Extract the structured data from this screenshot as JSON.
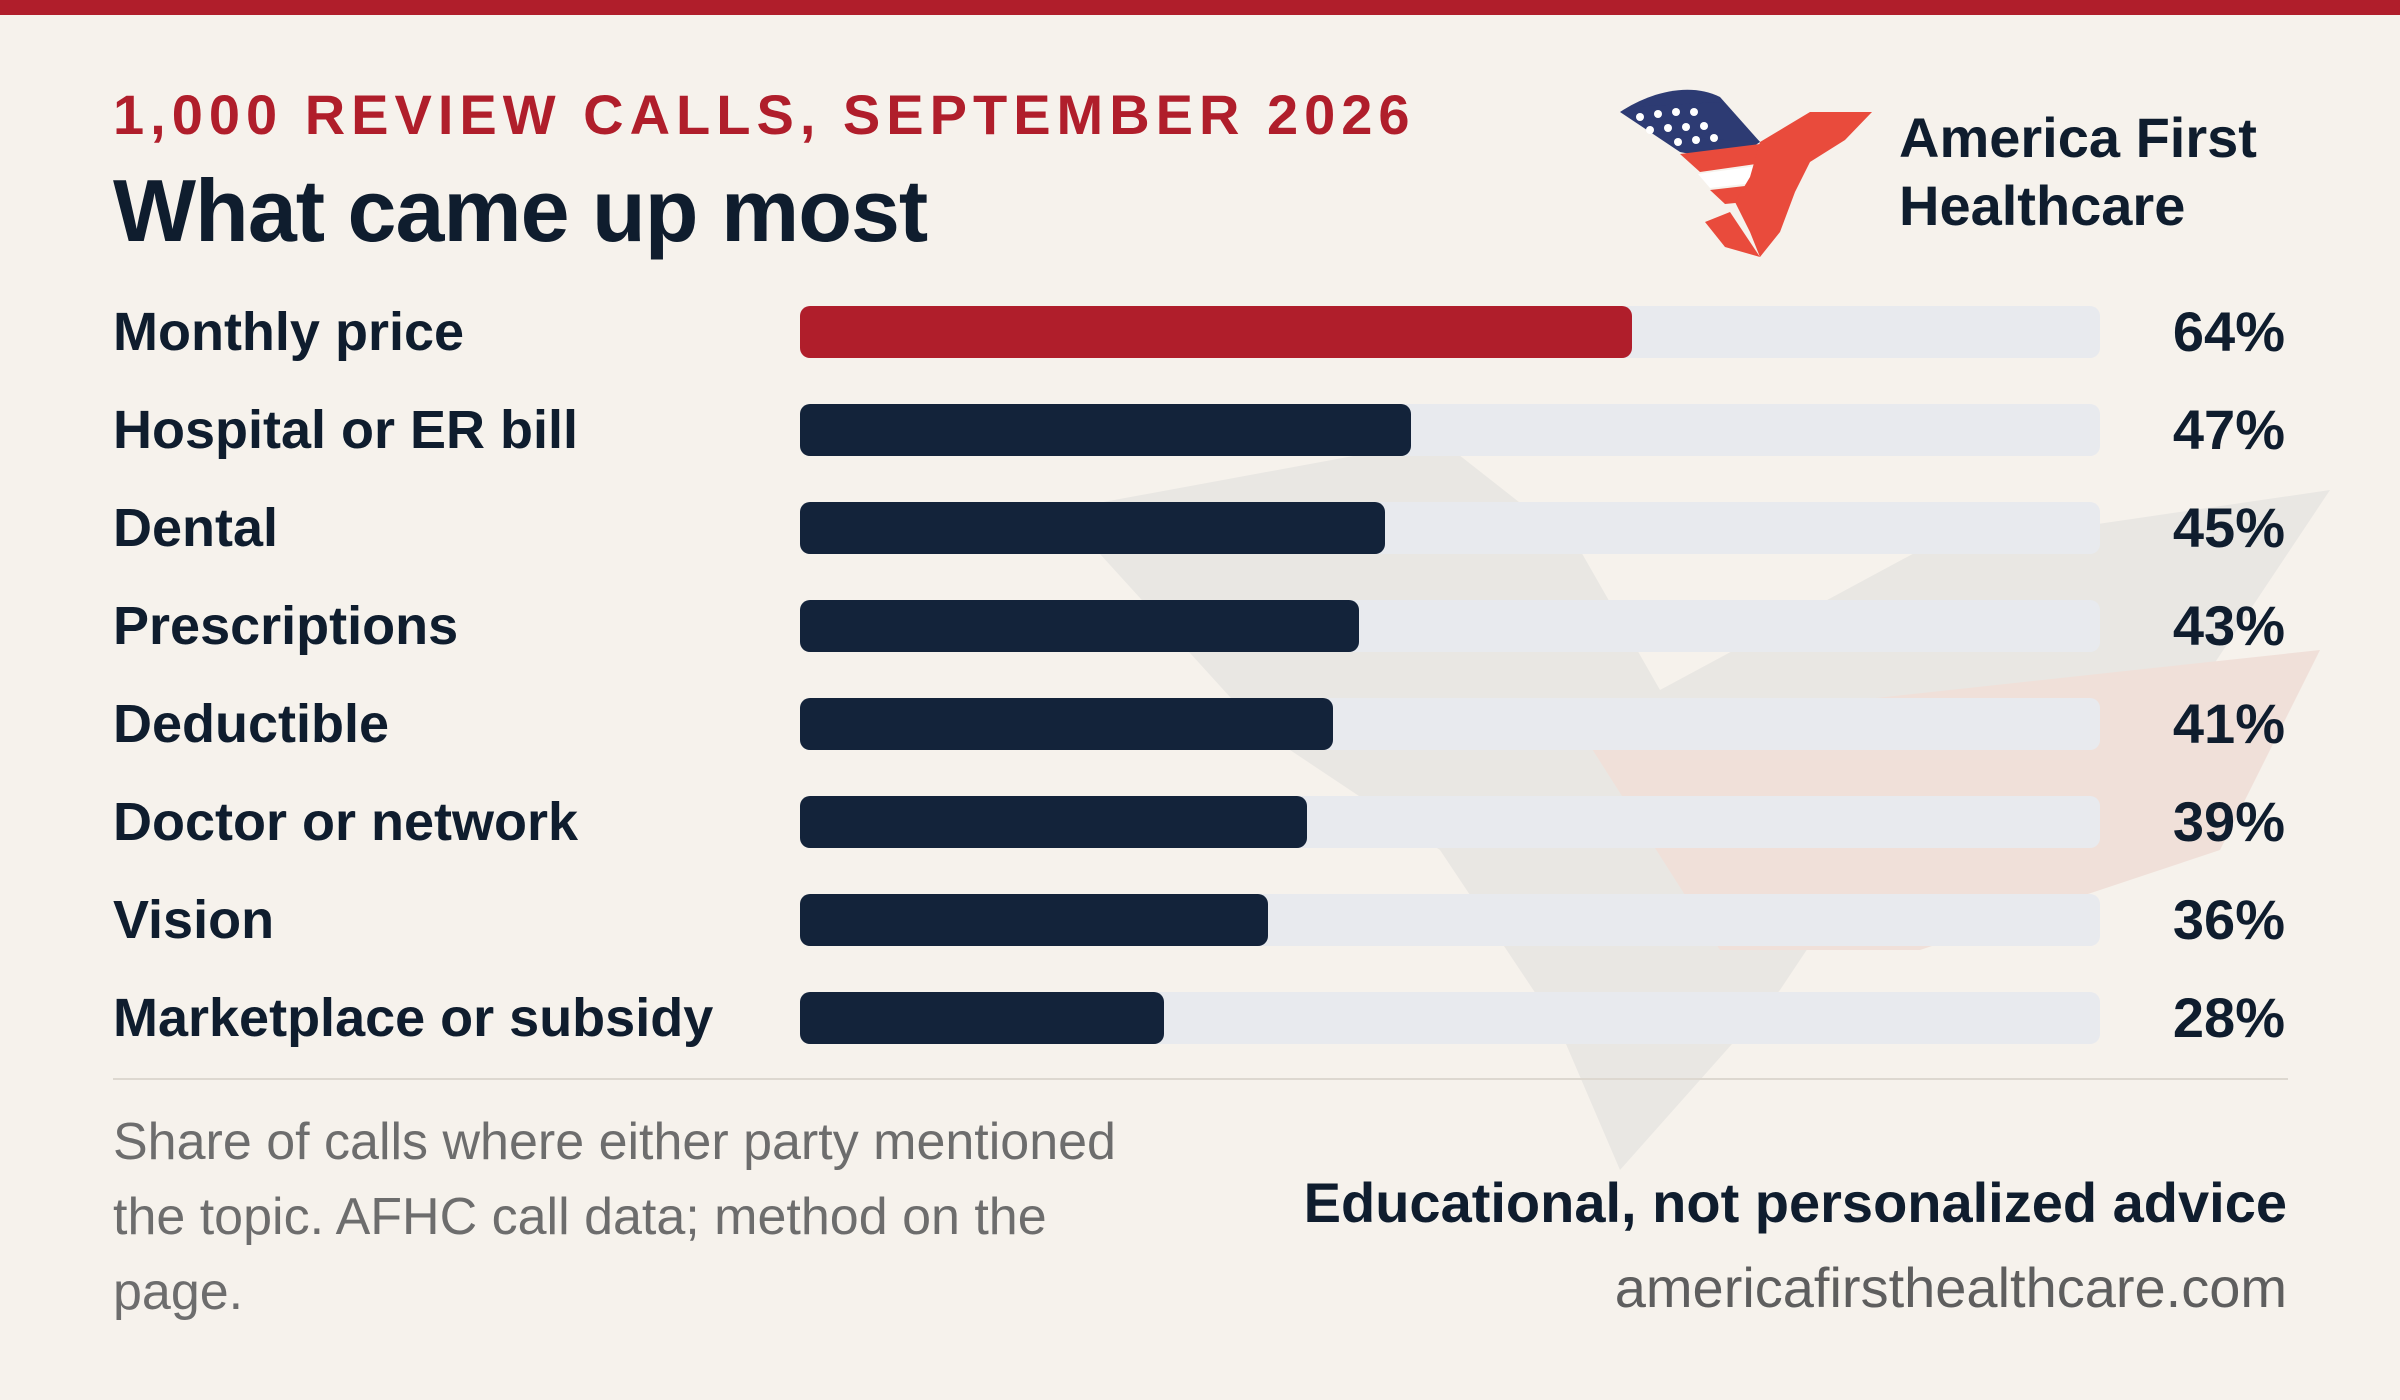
{
  "header": {
    "kicker": "1,000 REVIEW CALLS, SEPTEMBER 2026",
    "title": "What came up most"
  },
  "brand": {
    "line1": "America First",
    "line2": "Healthcare",
    "logo_icon": "eagle-flag-icon"
  },
  "colors": {
    "accent_red": "#b01e2b",
    "navy": "#13233a",
    "track": "#e8eaee",
    "background": "#f6f2ec"
  },
  "chart_data": {
    "type": "bar",
    "orientation": "horizontal",
    "categories": [
      "Monthly price",
      "Hospital or ER bill",
      "Dental",
      "Prescriptions",
      "Deductible",
      "Doctor or network",
      "Vision",
      "Marketplace or subsidy"
    ],
    "values": [
      64,
      47,
      45,
      43,
      41,
      39,
      36,
      28
    ],
    "value_labels": [
      "64%",
      "47%",
      "45%",
      "43%",
      "41%",
      "39%",
      "36%",
      "28%"
    ],
    "highlight_index": 0,
    "xlim": [
      0,
      100
    ],
    "grid": false,
    "legend": "none"
  },
  "footer": {
    "note": "Share of calls where either party mentioned the topic. AFHC call data; method on the page.",
    "disclaimer": "Educational, not personalized advice",
    "website": "americafirsthealthcare.com"
  }
}
